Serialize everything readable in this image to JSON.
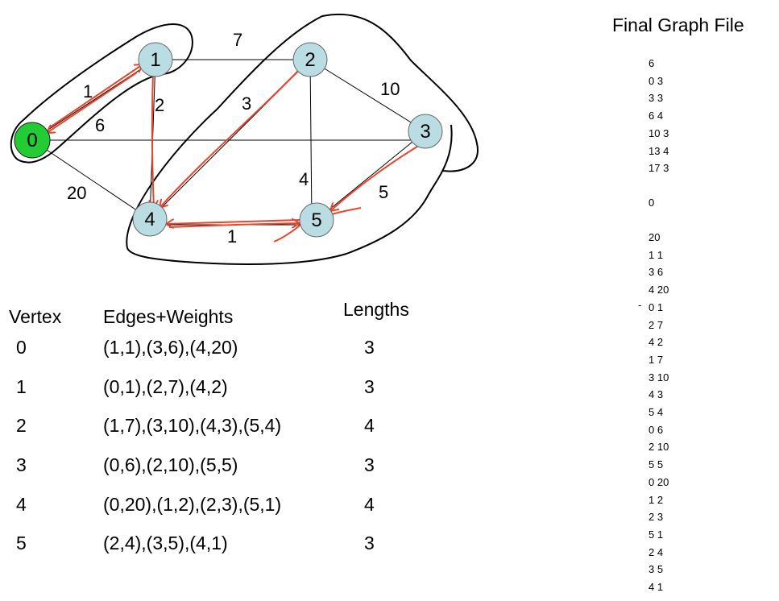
{
  "graph": {
    "vertices": [
      {
        "id": "0",
        "color": "#22cc33"
      },
      {
        "id": "1",
        "color": "#b9dde2"
      },
      {
        "id": "2",
        "color": "#b9dde2"
      },
      {
        "id": "3",
        "color": "#b9dde2"
      },
      {
        "id": "4",
        "color": "#b9dde2"
      },
      {
        "id": "5",
        "color": "#b9dde2"
      }
    ],
    "edges": [
      {
        "from": "0",
        "to": "1",
        "weight": "1"
      },
      {
        "from": "1",
        "to": "2",
        "weight": "7"
      },
      {
        "from": "1",
        "to": "4",
        "weight": "2"
      },
      {
        "from": "0",
        "to": "3",
        "weight": "6"
      },
      {
        "from": "2",
        "to": "4",
        "weight": "3"
      },
      {
        "from": "2",
        "to": "3",
        "weight": "10"
      },
      {
        "from": "2",
        "to": "5",
        "weight": "4"
      },
      {
        "from": "0",
        "to": "4",
        "weight": "20"
      },
      {
        "from": "3",
        "to": "5",
        "weight": "5"
      },
      {
        "from": "4",
        "to": "5",
        "weight": "1"
      }
    ],
    "accent_color": "#e8452b"
  },
  "table": {
    "headers": {
      "vertex": "Vertex",
      "edges": "Edges+Weights",
      "lengths": "Lengths"
    },
    "rows": [
      {
        "vertex": "0",
        "edges": "(1,1),(3,6),(4,20)",
        "length": "3"
      },
      {
        "vertex": "1",
        "edges": "(0,1),(2,7),(4,2)",
        "length": "3"
      },
      {
        "vertex": "2",
        "edges": "(1,7),(3,10),(4,3),(5,4)",
        "length": "4"
      },
      {
        "vertex": "3",
        "edges": "(0,6),(2,10),(5,5)",
        "length": "3"
      },
      {
        "vertex": "4",
        "edges": "(0,20),(1,2),(2,3),(5,1)",
        "length": "4"
      },
      {
        "vertex": "5",
        "edges": "(2,4),(3,5),(4,1)",
        "length": "3"
      }
    ]
  },
  "file": {
    "title": "Final Graph File",
    "lines_a": [
      "6",
      "0 3",
      "3 3",
      "6 4",
      "10 3",
      "13 4",
      "17 3"
    ],
    "line_b": "0",
    "lines_c": [
      "20",
      "1 1",
      "3 6",
      "4 20",
      "0 1",
      "2 7",
      "4 2",
      "1 7",
      "3 10",
      "4 3",
      "5 4",
      "0 6",
      "2 10",
      "5 5",
      "0 20",
      "1 2",
      "2 3",
      "5 1",
      "2 4",
      "3 5",
      "4 1"
    ],
    "marker": "-"
  }
}
